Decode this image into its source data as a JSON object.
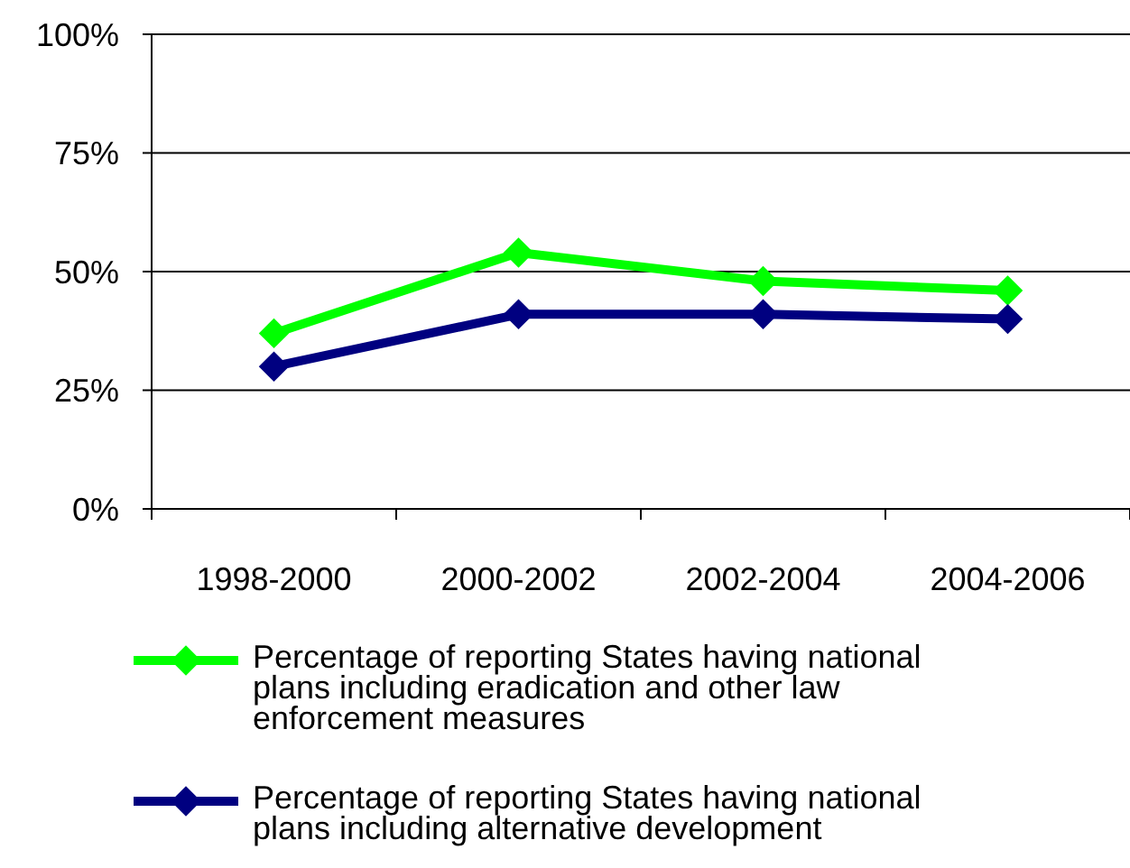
{
  "chart_data": {
    "type": "line",
    "categories": [
      "1998-2000",
      "2000-2002",
      "2002-2004",
      "2004-2006"
    ],
    "series": [
      {
        "name": "Percentage of reporting States having national plans including eradication and other law enforcement measures",
        "color": "#00ff00",
        "values": [
          37,
          54,
          48,
          46
        ]
      },
      {
        "name": "Percentage of reporting States having national plans including alternative development",
        "color": "#000080",
        "values": [
          30,
          41,
          41,
          40
        ]
      }
    ],
    "ylim": [
      0,
      100
    ],
    "yticks": [
      {
        "value": 0,
        "label": "0%"
      },
      {
        "value": 25,
        "label": "25%"
      },
      {
        "value": 50,
        "label": "50%"
      },
      {
        "value": 75,
        "label": "75%"
      },
      {
        "value": 100,
        "label": "100%"
      }
    ],
    "grid": "y",
    "legend": "bottom",
    "marker": "diamond",
    "line_style": "solid"
  }
}
